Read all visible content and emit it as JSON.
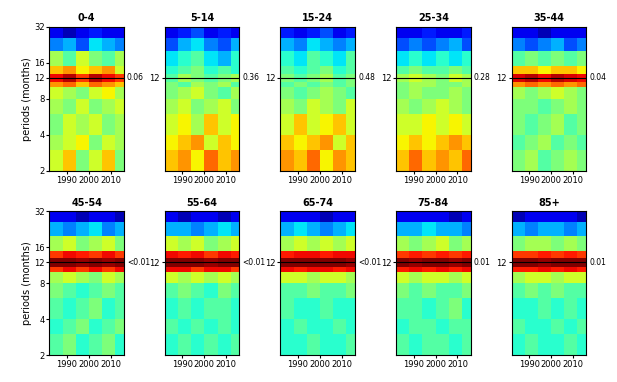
{
  "chart_data": [
    {
      "type": "heatmap",
      "title": "0-4",
      "y_label": "periods (months)",
      "log": "y",
      "xlim": [
        1982,
        2016
      ],
      "xticks": [
        1990,
        2000,
        2010
      ],
      "ylim": [
        2,
        32
      ],
      "yticks": [
        2,
        4,
        8,
        12,
        16,
        32
      ],
      "x_edges": [
        1982,
        1988,
        1994,
        2000,
        2006,
        2012,
        2016
      ],
      "y_edges": [
        2,
        3,
        4,
        6,
        8,
        10,
        11,
        13,
        15,
        20,
        26,
        32
      ],
      "color_range": [
        0,
        1
      ],
      "reference_line": 12,
      "annotation": "0.06",
      "cells": [
        [
          0.6,
          0.7,
          0.5,
          0.6,
          0.7,
          0.5
        ],
        [
          0.55,
          0.6,
          0.65,
          0.5,
          0.6,
          0.55
        ],
        [
          0.5,
          0.6,
          0.55,
          0.6,
          0.5,
          0.55
        ],
        [
          0.55,
          0.5,
          0.6,
          0.5,
          0.55,
          0.6
        ],
        [
          0.6,
          0.55,
          0.5,
          0.6,
          0.65,
          0.55
        ],
        [
          0.75,
          0.8,
          0.7,
          0.8,
          0.75,
          0.7
        ],
        [
          0.9,
          0.95,
          0.85,
          0.95,
          0.9,
          0.85
        ],
        [
          0.7,
          0.75,
          0.65,
          0.7,
          0.75,
          0.6
        ],
        [
          0.55,
          0.45,
          0.6,
          0.5,
          0.45,
          0.55
        ],
        [
          0.25,
          0.3,
          0.2,
          0.35,
          0.3,
          0.25
        ],
        [
          0.1,
          0.05,
          0.1,
          0.15,
          0.1,
          0.1
        ]
      ]
    },
    {
      "type": "heatmap",
      "title": "5-14",
      "log": "y",
      "xlim": [
        1982,
        2016
      ],
      "xticks": [
        1990,
        2000,
        2010
      ],
      "ylim": [
        2,
        32
      ],
      "yticks": [
        12
      ],
      "x_edges": [
        1982,
        1988,
        1994,
        2000,
        2006,
        2012,
        2016
      ],
      "y_edges": [
        2,
        3,
        4,
        6,
        8,
        10,
        11,
        13,
        15,
        20,
        26,
        32
      ],
      "color_range": [
        0,
        1
      ],
      "reference_line": 12,
      "annotation": "0.36",
      "cells": [
        [
          0.7,
          0.75,
          0.65,
          0.8,
          0.7,
          0.75
        ],
        [
          0.65,
          0.7,
          0.75,
          0.6,
          0.7,
          0.65
        ],
        [
          0.6,
          0.65,
          0.55,
          0.7,
          0.6,
          0.65
        ],
        [
          0.55,
          0.6,
          0.5,
          0.55,
          0.6,
          0.5
        ],
        [
          0.5,
          0.55,
          0.6,
          0.5,
          0.45,
          0.55
        ],
        [
          0.5,
          0.45,
          0.55,
          0.5,
          0.55,
          0.45
        ],
        [
          0.45,
          0.55,
          0.5,
          0.45,
          0.5,
          0.55
        ],
        [
          0.4,
          0.45,
          0.5,
          0.4,
          0.45,
          0.4
        ],
        [
          0.35,
          0.4,
          0.45,
          0.35,
          0.3,
          0.4
        ],
        [
          0.2,
          0.3,
          0.35,
          0.25,
          0.2,
          0.3
        ],
        [
          0.1,
          0.15,
          0.2,
          0.1,
          0.15,
          0.1
        ]
      ]
    },
    {
      "type": "heatmap",
      "title": "15-24",
      "log": "y",
      "xlim": [
        1982,
        2016
      ],
      "xticks": [
        1990,
        2000,
        2010
      ],
      "ylim": [
        2,
        32
      ],
      "yticks": [
        12
      ],
      "x_edges": [
        1982,
        1988,
        1994,
        2000,
        2006,
        2012,
        2016
      ],
      "y_edges": [
        2,
        3,
        4,
        6,
        8,
        10,
        11,
        13,
        15,
        20,
        26,
        32
      ],
      "color_range": [
        0,
        1
      ],
      "reference_line": 12,
      "annotation": "0.48",
      "cells": [
        [
          0.75,
          0.7,
          0.8,
          0.65,
          0.75,
          0.7
        ],
        [
          0.7,
          0.65,
          0.7,
          0.75,
          0.6,
          0.7
        ],
        [
          0.6,
          0.7,
          0.6,
          0.65,
          0.7,
          0.6
        ],
        [
          0.55,
          0.5,
          0.6,
          0.55,
          0.5,
          0.6
        ],
        [
          0.5,
          0.45,
          0.5,
          0.55,
          0.5,
          0.45
        ],
        [
          0.45,
          0.5,
          0.45,
          0.5,
          0.45,
          0.5
        ],
        [
          0.5,
          0.45,
          0.5,
          0.55,
          0.45,
          0.5
        ],
        [
          0.45,
          0.4,
          0.45,
          0.5,
          0.4,
          0.45
        ],
        [
          0.4,
          0.35,
          0.45,
          0.4,
          0.35,
          0.45
        ],
        [
          0.3,
          0.25,
          0.35,
          0.3,
          0.25,
          0.3
        ],
        [
          0.15,
          0.1,
          0.15,
          0.2,
          0.1,
          0.15
        ]
      ]
    },
    {
      "type": "heatmap",
      "title": "25-34",
      "log": "y",
      "xlim": [
        1982,
        2016
      ],
      "xticks": [
        1990,
        2000,
        2010
      ],
      "ylim": [
        2,
        32
      ],
      "yticks": [
        12
      ],
      "x_edges": [
        1982,
        1988,
        1994,
        2000,
        2006,
        2012,
        2016
      ],
      "y_edges": [
        2,
        3,
        4,
        6,
        8,
        10,
        11,
        13,
        15,
        20,
        26,
        32
      ],
      "color_range": [
        0,
        1
      ],
      "reference_line": 12,
      "annotation": "0.28",
      "cells": [
        [
          0.7,
          0.8,
          0.7,
          0.75,
          0.7,
          0.8
        ],
        [
          0.65,
          0.7,
          0.65,
          0.7,
          0.75,
          0.7
        ],
        [
          0.6,
          0.6,
          0.65,
          0.6,
          0.65,
          0.6
        ],
        [
          0.55,
          0.5,
          0.55,
          0.6,
          0.55,
          0.5
        ],
        [
          0.5,
          0.55,
          0.5,
          0.5,
          0.55,
          0.5
        ],
        [
          0.5,
          0.55,
          0.55,
          0.5,
          0.5,
          0.55
        ],
        [
          0.55,
          0.6,
          0.55,
          0.5,
          0.6,
          0.55
        ],
        [
          0.45,
          0.5,
          0.45,
          0.45,
          0.5,
          0.45
        ],
        [
          0.35,
          0.4,
          0.35,
          0.4,
          0.35,
          0.4
        ],
        [
          0.2,
          0.25,
          0.2,
          0.25,
          0.3,
          0.2
        ],
        [
          0.1,
          0.1,
          0.15,
          0.1,
          0.1,
          0.15
        ]
      ]
    },
    {
      "type": "heatmap",
      "title": "35-44",
      "log": "y",
      "xlim": [
        1982,
        2016
      ],
      "xticks": [
        1990,
        2000,
        2010
      ],
      "ylim": [
        2,
        32
      ],
      "yticks": [
        12
      ],
      "x_edges": [
        1982,
        1988,
        1994,
        2000,
        2006,
        2012,
        2016
      ],
      "y_edges": [
        2,
        3,
        4,
        6,
        8,
        10,
        11,
        13,
        15,
        20,
        26,
        32
      ],
      "color_range": [
        0,
        1
      ],
      "reference_line": 12,
      "annotation": "0.04",
      "cells": [
        [
          0.5,
          0.55,
          0.45,
          0.5,
          0.55,
          0.5
        ],
        [
          0.45,
          0.5,
          0.55,
          0.45,
          0.5,
          0.45
        ],
        [
          0.5,
          0.45,
          0.5,
          0.55,
          0.45,
          0.5
        ],
        [
          0.5,
          0.5,
          0.45,
          0.5,
          0.55,
          0.5
        ],
        [
          0.55,
          0.5,
          0.55,
          0.6,
          0.55,
          0.5
        ],
        [
          0.75,
          0.8,
          0.75,
          0.8,
          0.75,
          0.8
        ],
        [
          0.92,
          0.95,
          0.9,
          0.95,
          0.92,
          0.9
        ],
        [
          0.7,
          0.7,
          0.65,
          0.7,
          0.7,
          0.65
        ],
        [
          0.45,
          0.5,
          0.45,
          0.5,
          0.45,
          0.5
        ],
        [
          0.25,
          0.2,
          0.25,
          0.3,
          0.2,
          0.25
        ],
        [
          0.1,
          0.1,
          0.05,
          0.1,
          0.1,
          0.1
        ]
      ]
    },
    {
      "type": "heatmap",
      "title": "45-54",
      "y_label": "periods (months)",
      "log": "y",
      "xlim": [
        1982,
        2016
      ],
      "xticks": [
        1990,
        2000,
        2010
      ],
      "ylim": [
        2,
        32
      ],
      "yticks": [
        2,
        4,
        8,
        12,
        16,
        32
      ],
      "x_edges": [
        1982,
        1988,
        1994,
        2000,
        2006,
        2012,
        2016
      ],
      "y_edges": [
        2,
        3,
        4,
        6,
        8,
        10,
        11,
        13,
        15,
        20,
        26,
        32
      ],
      "color_range": [
        0,
        1
      ],
      "reference_line": 12,
      "annotation": "<0.01",
      "cells": [
        [
          0.45,
          0.5,
          0.4,
          0.45,
          0.5,
          0.4
        ],
        [
          0.4,
          0.45,
          0.5,
          0.4,
          0.45,
          0.5
        ],
        [
          0.45,
          0.4,
          0.45,
          0.5,
          0.4,
          0.45
        ],
        [
          0.5,
          0.45,
          0.4,
          0.45,
          0.5,
          0.45
        ],
        [
          0.55,
          0.6,
          0.55,
          0.5,
          0.6,
          0.55
        ],
        [
          0.85,
          0.9,
          0.85,
          0.9,
          0.85,
          0.9
        ],
        [
          1.0,
          1.0,
          0.98,
          1.0,
          0.98,
          1.0
        ],
        [
          0.85,
          0.9,
          0.88,
          0.85,
          0.9,
          0.85
        ],
        [
          0.55,
          0.6,
          0.5,
          0.55,
          0.6,
          0.5
        ],
        [
          0.3,
          0.25,
          0.3,
          0.35,
          0.25,
          0.3
        ],
        [
          0.1,
          0.1,
          0.05,
          0.1,
          0.1,
          0.05
        ]
      ]
    },
    {
      "type": "heatmap",
      "title": "55-64",
      "log": "y",
      "xlim": [
        1982,
        2016
      ],
      "xticks": [
        1990,
        2000,
        2010
      ],
      "ylim": [
        2,
        32
      ],
      "yticks": [
        12
      ],
      "x_edges": [
        1982,
        1988,
        1994,
        2000,
        2006,
        2012,
        2016
      ],
      "y_edges": [
        2,
        3,
        4,
        6,
        8,
        10,
        11,
        13,
        15,
        20,
        26,
        32
      ],
      "color_range": [
        0,
        1
      ],
      "reference_line": 12,
      "annotation": "<0.01",
      "cells": [
        [
          0.4,
          0.45,
          0.4,
          0.45,
          0.4,
          0.45
        ],
        [
          0.45,
          0.4,
          0.45,
          0.4,
          0.45,
          0.4
        ],
        [
          0.4,
          0.45,
          0.4,
          0.45,
          0.45,
          0.4
        ],
        [
          0.45,
          0.5,
          0.45,
          0.4,
          0.5,
          0.45
        ],
        [
          0.6,
          0.55,
          0.6,
          0.55,
          0.6,
          0.55
        ],
        [
          0.9,
          0.9,
          0.85,
          0.9,
          0.9,
          0.85
        ],
        [
          1.0,
          1.0,
          1.0,
          0.98,
          1.0,
          1.0
        ],
        [
          0.9,
          0.88,
          0.9,
          0.85,
          0.9,
          0.88
        ],
        [
          0.6,
          0.55,
          0.6,
          0.5,
          0.55,
          0.6
        ],
        [
          0.3,
          0.3,
          0.25,
          0.3,
          0.35,
          0.3
        ],
        [
          0.1,
          0.05,
          0.1,
          0.1,
          0.05,
          0.1
        ]
      ]
    },
    {
      "type": "heatmap",
      "title": "65-74",
      "log": "y",
      "xlim": [
        1982,
        2016
      ],
      "xticks": [
        1990,
        2000,
        2010
      ],
      "ylim": [
        2,
        32
      ],
      "yticks": [
        12
      ],
      "x_edges": [
        1982,
        1988,
        1994,
        2000,
        2006,
        2012,
        2016
      ],
      "y_edges": [
        2,
        3,
        4,
        6,
        8,
        10,
        11,
        13,
        15,
        20,
        26,
        32
      ],
      "color_range": [
        0,
        1
      ],
      "reference_line": 12,
      "annotation": "<0.01",
      "cells": [
        [
          0.4,
          0.4,
          0.45,
          0.4,
          0.4,
          0.45
        ],
        [
          0.4,
          0.45,
          0.4,
          0.4,
          0.45,
          0.4
        ],
        [
          0.45,
          0.4,
          0.4,
          0.45,
          0.4,
          0.4
        ],
        [
          0.45,
          0.45,
          0.5,
          0.45,
          0.45,
          0.5
        ],
        [
          0.6,
          0.6,
          0.55,
          0.6,
          0.6,
          0.55
        ],
        [
          0.9,
          0.88,
          0.9,
          0.9,
          0.88,
          0.9
        ],
        [
          1.0,
          1.0,
          1.0,
          1.0,
          1.0,
          0.98
        ],
        [
          0.88,
          0.9,
          0.9,
          0.88,
          0.9,
          0.9
        ],
        [
          0.55,
          0.6,
          0.55,
          0.6,
          0.55,
          0.6
        ],
        [
          0.3,
          0.35,
          0.3,
          0.25,
          0.3,
          0.35
        ],
        [
          0.1,
          0.1,
          0.1,
          0.05,
          0.1,
          0.1
        ]
      ]
    },
    {
      "type": "heatmap",
      "title": "75-84",
      "log": "y",
      "xlim": [
        1982,
        2016
      ],
      "xticks": [
        1990,
        2000,
        2010
      ],
      "ylim": [
        2,
        32
      ],
      "yticks": [
        12
      ],
      "x_edges": [
        1982,
        1988,
        1994,
        2000,
        2006,
        2012,
        2016
      ],
      "y_edges": [
        2,
        3,
        4,
        6,
        8,
        10,
        11,
        13,
        15,
        20,
        26,
        32
      ],
      "color_range": [
        0,
        1
      ],
      "reference_line": 12,
      "annotation": "0.01",
      "cells": [
        [
          0.45,
          0.4,
          0.45,
          0.45,
          0.4,
          0.45
        ],
        [
          0.4,
          0.45,
          0.45,
          0.4,
          0.45,
          0.45
        ],
        [
          0.45,
          0.45,
          0.4,
          0.45,
          0.5,
          0.4
        ],
        [
          0.5,
          0.45,
          0.5,
          0.45,
          0.45,
          0.5
        ],
        [
          0.6,
          0.55,
          0.6,
          0.6,
          0.55,
          0.6
        ],
        [
          0.88,
          0.9,
          0.88,
          0.9,
          0.88,
          0.9
        ],
        [
          1.0,
          0.98,
          1.0,
          1.0,
          0.98,
          1.0
        ],
        [
          0.85,
          0.88,
          0.85,
          0.88,
          0.85,
          0.88
        ],
        [
          0.55,
          0.5,
          0.55,
          0.6,
          0.5,
          0.55
        ],
        [
          0.3,
          0.3,
          0.35,
          0.3,
          0.3,
          0.25
        ],
        [
          0.1,
          0.1,
          0.1,
          0.1,
          0.05,
          0.1
        ]
      ]
    },
    {
      "type": "heatmap",
      "title": "85+",
      "log": "y",
      "xlim": [
        1982,
        2016
      ],
      "xticks": [
        1990,
        2000,
        2010
      ],
      "ylim": [
        2,
        32
      ],
      "yticks": [
        12
      ],
      "x_edges": [
        1982,
        1988,
        1994,
        2000,
        2006,
        2012,
        2016
      ],
      "y_edges": [
        2,
        3,
        4,
        6,
        8,
        10,
        11,
        13,
        15,
        20,
        26,
        32
      ],
      "color_range": [
        0,
        1
      ],
      "reference_line": 12,
      "annotation": "0.01",
      "cells": [
        [
          0.4,
          0.45,
          0.4,
          0.4,
          0.45,
          0.4
        ],
        [
          0.45,
          0.4,
          0.4,
          0.45,
          0.4,
          0.45
        ],
        [
          0.4,
          0.4,
          0.45,
          0.4,
          0.45,
          0.4
        ],
        [
          0.45,
          0.5,
          0.45,
          0.5,
          0.45,
          0.45
        ],
        [
          0.55,
          0.6,
          0.6,
          0.55,
          0.6,
          0.6
        ],
        [
          0.88,
          0.88,
          0.9,
          0.88,
          0.9,
          0.88
        ],
        [
          1.0,
          1.0,
          0.98,
          1.0,
          1.0,
          1.0
        ],
        [
          0.85,
          0.85,
          0.88,
          0.85,
          0.88,
          0.85
        ],
        [
          0.5,
          0.55,
          0.55,
          0.5,
          0.55,
          0.5
        ],
        [
          0.3,
          0.25,
          0.3,
          0.3,
          0.25,
          0.3
        ],
        [
          0.05,
          0.1,
          0.1,
          0.1,
          0.1,
          0.05
        ]
      ]
    }
  ]
}
